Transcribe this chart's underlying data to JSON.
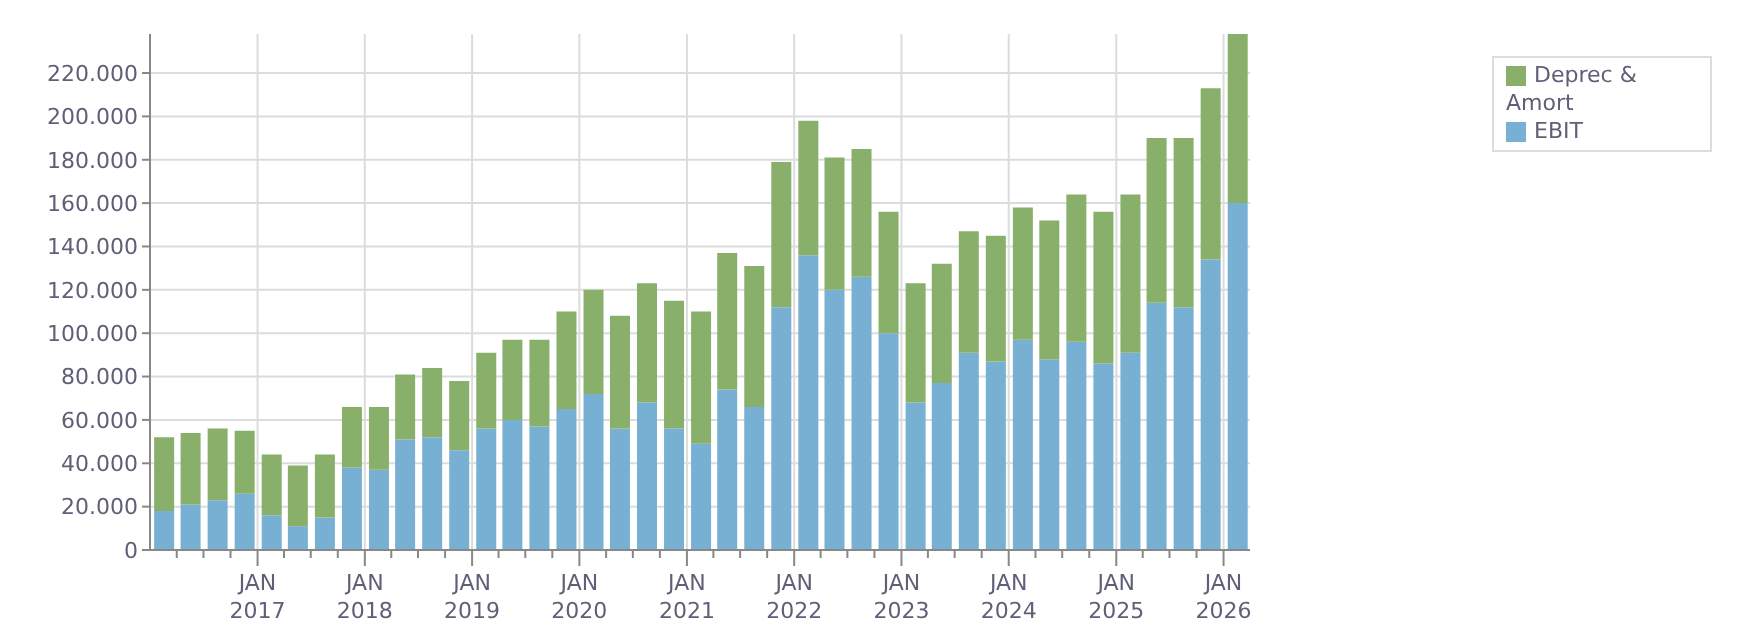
{
  "chart_data": {
    "type": "bar",
    "stacked": true,
    "x": [
      "2016-02-15",
      "2016-05-15",
      "2016-08-15",
      "2016-11-15",
      "2017-02-15",
      "2017-05-15",
      "2017-08-15",
      "2017-11-15",
      "2018-02-15",
      "2018-05-15",
      "2018-08-15",
      "2018-11-15",
      "2019-02-15",
      "2019-05-15",
      "2019-08-15",
      "2019-11-15",
      "2020-02-15",
      "2020-05-15",
      "2020-08-15",
      "2020-11-15",
      "2021-02-15",
      "2021-05-15",
      "2021-08-15",
      "2021-11-15",
      "2022-02-15",
      "2022-05-15",
      "2022-08-15",
      "2022-11-15",
      "2023-02-15",
      "2023-05-15",
      "2023-08-15",
      "2023-11-15",
      "2024-02-15",
      "2024-05-15",
      "2024-08-15",
      "2024-11-15",
      "2025-02-15",
      "2025-05-15",
      "2025-08-15",
      "2025-11-15",
      "2026-02-15"
    ],
    "series": [
      {
        "name": "EBIT",
        "color": "#78b0d3",
        "values": [
          18000,
          21000,
          23000,
          26000,
          16000,
          11000,
          15000,
          38000,
          37000,
          51000,
          52000,
          46000,
          56000,
          60000,
          57000,
          65000,
          72000,
          56000,
          68000,
          56000,
          49000,
          74000,
          66000,
          112000,
          136000,
          120000,
          126000,
          100000,
          68000,
          77000,
          91000,
          87000,
          97000,
          88000,
          96000,
          86000,
          91000,
          114000,
          112000,
          134000,
          160000
        ]
      },
      {
        "name": "Deprec & Amort",
        "color": "#88b06a",
        "values": [
          34000,
          33000,
          33000,
          29000,
          28000,
          28000,
          29000,
          28000,
          29000,
          30000,
          32000,
          32000,
          35000,
          37000,
          40000,
          45000,
          48000,
          52000,
          55000,
          59000,
          61000,
          63000,
          65000,
          67000,
          62000,
          61000,
          59000,
          56000,
          55000,
          55000,
          56000,
          58000,
          61000,
          64000,
          68000,
          70000,
          73000,
          76000,
          78000,
          79000,
          78000
        ]
      }
    ],
    "xlim": [
      "2016-01-01",
      "2026-04-01"
    ],
    "xticks": [
      {
        "value": "2016-04-01",
        "label": null
      },
      {
        "value": "2016-07-01",
        "label": null
      },
      {
        "value": "2016-10-01",
        "label": null
      },
      {
        "value": "2017-01-01",
        "label": "JAN 2017"
      },
      {
        "value": "2017-04-01",
        "label": null
      },
      {
        "value": "2017-07-01",
        "label": null
      },
      {
        "value": "2017-10-01",
        "label": null
      },
      {
        "value": "2018-01-01",
        "label": "JAN 2018"
      },
      {
        "value": "2018-04-01",
        "label": null
      },
      {
        "value": "2018-07-01",
        "label": null
      },
      {
        "value": "2018-10-01",
        "label": null
      },
      {
        "value": "2019-01-01",
        "label": "JAN 2019"
      },
      {
        "value": "2019-04-01",
        "label": null
      },
      {
        "value": "2019-07-01",
        "label": null
      },
      {
        "value": "2019-10-01",
        "label": null
      },
      {
        "value": "2020-01-01",
        "label": "JAN 2020"
      },
      {
        "value": "2020-04-01",
        "label": null
      },
      {
        "value": "2020-07-01",
        "label": null
      },
      {
        "value": "2020-10-01",
        "label": null
      },
      {
        "value": "2021-01-01",
        "label": "JAN 2021"
      },
      {
        "value": "2021-04-01",
        "label": null
      },
      {
        "value": "2021-07-01",
        "label": null
      },
      {
        "value": "2021-10-01",
        "label": null
      },
      {
        "value": "2022-01-01",
        "label": "JAN 2022"
      },
      {
        "value": "2022-04-01",
        "label": null
      },
      {
        "value": "2022-07-01",
        "label": null
      },
      {
        "value": "2022-10-01",
        "label": null
      },
      {
        "value": "2023-01-01",
        "label": "JAN 2023"
      },
      {
        "value": "2023-04-01",
        "label": null
      },
      {
        "value": "2023-07-01",
        "label": null
      },
      {
        "value": "2023-10-01",
        "label": null
      },
      {
        "value": "2024-01-01",
        "label": "JAN 2024"
      },
      {
        "value": "2024-04-01",
        "label": null
      },
      {
        "value": "2024-07-01",
        "label": null
      },
      {
        "value": "2024-10-01",
        "label": null
      },
      {
        "value": "2025-01-01",
        "label": "JAN 2025"
      },
      {
        "value": "2025-04-01",
        "label": null
      },
      {
        "value": "2025-07-01",
        "label": null
      },
      {
        "value": "2025-10-01",
        "label": null
      },
      {
        "value": "2026-01-01",
        "label": "JAN 2026"
      }
    ],
    "ylim": [
      0,
      238000
    ],
    "yticks": [
      0,
      {
        "value": 20000,
        "label": "20.000"
      },
      {
        "value": 40000,
        "label": "40.000"
      },
      {
        "value": 60000,
        "label": "60.000"
      },
      {
        "value": 80000,
        "label": "80.000"
      },
      {
        "value": 100000,
        "label": "100.000"
      },
      {
        "value": 120000,
        "label": "120.000"
      },
      {
        "value": 140000,
        "label": "140.000"
      },
      {
        "value": 160000,
        "label": "160.000"
      },
      {
        "value": 180000,
        "label": "180.000"
      },
      {
        "value": 200000,
        "label": "200.000"
      },
      {
        "value": 220000,
        "label": "220.000"
      }
    ],
    "grid": true,
    "legend": "top right"
  }
}
